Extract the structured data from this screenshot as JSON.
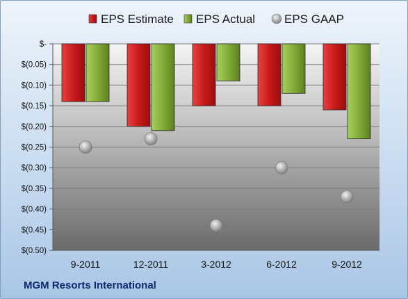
{
  "chart_data": {
    "type": "bar",
    "categories": [
      "9-2011",
      "12-2011",
      "3-2012",
      "6-2012",
      "9-2012"
    ],
    "series": [
      {
        "name": "EPS Estimate",
        "kind": "bar",
        "color": "#cc1f1f",
        "values": [
          -0.14,
          -0.2,
          -0.15,
          -0.15,
          -0.16
        ]
      },
      {
        "name": "EPS Actual",
        "kind": "bar",
        "color": "#86b03a",
        "values": [
          -0.14,
          -0.21,
          -0.09,
          -0.12,
          -0.23
        ]
      },
      {
        "name": "EPS GAAP",
        "kind": "point",
        "color": "#b8b8b8",
        "values": [
          -0.25,
          -0.23,
          -0.44,
          -0.3,
          -0.37
        ]
      }
    ],
    "yticks": [
      {
        "value": 0,
        "label": "$-"
      },
      {
        "value": -0.05,
        "label": "$(0.05)"
      },
      {
        "value": -0.1,
        "label": "$(0.10)"
      },
      {
        "value": -0.15,
        "label": "$(0.15)"
      },
      {
        "value": -0.2,
        "label": "$(0.20)"
      },
      {
        "value": -0.25,
        "label": "$(0.25)"
      },
      {
        "value": -0.3,
        "label": "$(0.30)"
      },
      {
        "value": -0.35,
        "label": "$(0.35)"
      },
      {
        "value": -0.4,
        "label": "$(0.40)"
      },
      {
        "value": -0.45,
        "label": "$(0.45)"
      },
      {
        "value": -0.5,
        "label": "$(0.50)"
      }
    ],
    "ylim": [
      -0.5,
      0
    ],
    "grid": true,
    "legend_position": "top"
  },
  "footer": "MGM Resorts International"
}
